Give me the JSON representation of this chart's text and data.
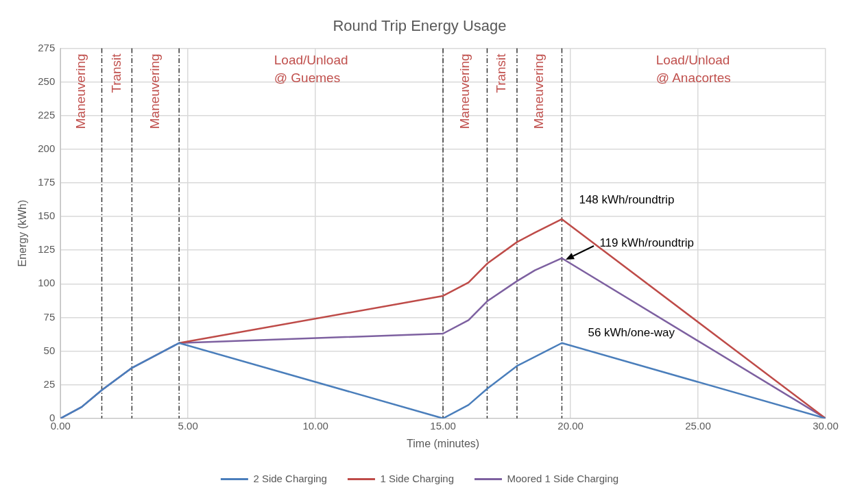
{
  "chart_data": {
    "type": "line",
    "title": "Round Trip Energy Usage",
    "xlabel": "Time (minutes)",
    "ylabel": "Energy (kWh)",
    "series": [
      {
        "name": "2 Side Charging",
        "color": "#4a7ebb",
        "x": [
          0,
          0.83,
          1.62,
          2.8,
          4.65,
          15.0,
          16.0,
          16.73,
          17.9,
          19.66,
          30
        ],
        "values": [
          0,
          8.5,
          21,
          37.5,
          56,
          0,
          10,
          22,
          39,
          56,
          0
        ]
      },
      {
        "name": "1 Side Charging",
        "color": "#be4b48",
        "x": [
          4.65,
          15.0,
          16.0,
          16.73,
          17.9,
          18.6,
          19.66,
          30
        ],
        "values": [
          56,
          91,
          101,
          115,
          131,
          138,
          148,
          0
        ]
      },
      {
        "name": "Moored 1 Side Charging",
        "color": "#7d60a0",
        "x": [
          0,
          0.83,
          1.62,
          2.8,
          4.65,
          15.0,
          16.0,
          16.73,
          17.9,
          18.6,
          19.66,
          30
        ],
        "values": [
          0,
          8.5,
          21,
          37.5,
          56,
          63,
          73,
          87,
          102,
          110,
          119,
          0
        ]
      }
    ],
    "xlim": [
      0,
      30
    ],
    "xticks": [
      {
        "value": 0,
        "label": "0.00"
      },
      {
        "value": 5,
        "label": "5.00"
      },
      {
        "value": 10,
        "label": "10.00"
      },
      {
        "value": 15,
        "label": "15.00"
      },
      {
        "value": 20,
        "label": "20.00"
      },
      {
        "value": 25,
        "label": "25.00"
      },
      {
        "value": 30,
        "label": "30.00"
      }
    ],
    "ylim": [
      0,
      275
    ],
    "yticks": [
      0,
      25,
      50,
      75,
      100,
      125,
      150,
      175,
      200,
      225,
      250,
      275
    ],
    "grid": true,
    "legend": "bottom",
    "marker": "none",
    "line_style": "solid",
    "ref_lines": [
      {
        "axis": "x",
        "value": 1.62,
        "line_style": "dashed"
      },
      {
        "axis": "x",
        "value": 2.8,
        "line_style": "dashed"
      },
      {
        "axis": "x",
        "value": 4.65,
        "line_style": "dashed"
      },
      {
        "axis": "x",
        "value": 15.0,
        "line_style": "dashed"
      },
      {
        "axis": "x",
        "value": 16.73,
        "line_style": "dashed"
      },
      {
        "axis": "x",
        "value": 17.9,
        "line_style": "dashed"
      },
      {
        "axis": "x",
        "value": 19.66,
        "line_style": "dashed"
      }
    ],
    "annotations": [
      "Maneuvering",
      "Transit",
      "Maneuvering",
      "Load/Unload\n@ Guemes",
      "Maneuvering",
      "Transit",
      "Maneuvering",
      "Load/Unload\n@ Anacortes",
      "148 kWh/roundtrip",
      "119 kWh/roundtrip",
      "56 kWh/one-way"
    ]
  }
}
